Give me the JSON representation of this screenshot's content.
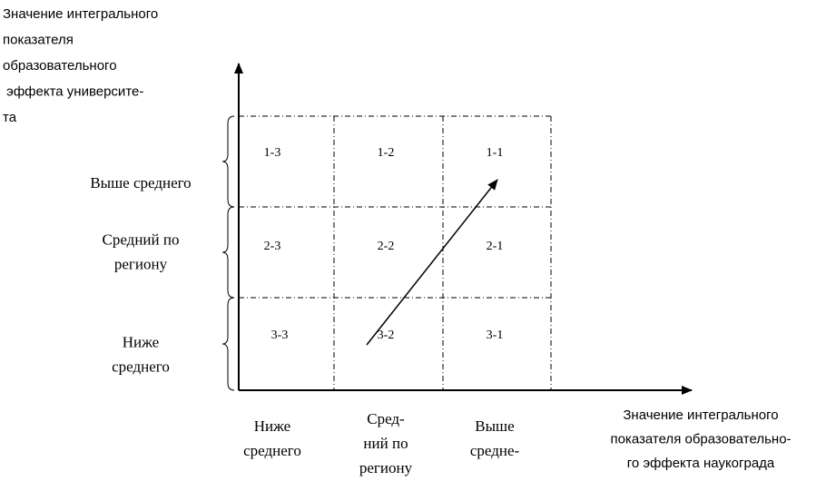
{
  "y_axis_label": [
    "Значение интегрального",
    "показателя",
    "образовательного",
    " эффекта университе-",
    "та"
  ],
  "x_axis_label": [
    "Значение интегрального",
    "показателя образовательно-",
    "го эффекта наукограда"
  ],
  "row_labels": [
    [
      "Выше среднего"
    ],
    [
      "Средний по",
      "региону"
    ],
    [
      "Ниже",
      "среднего"
    ]
  ],
  "column_labels": [
    [
      "Ниже",
      "среднего"
    ],
    [
      "Сред-",
      "ний по",
      "региону"
    ],
    [
      "Выше",
      "средне-"
    ]
  ],
  "cells": [
    [
      "1-3",
      "1-2",
      "1-1"
    ],
    [
      "2-3",
      "2-2",
      "2-1"
    ],
    [
      "3-3",
      "3-2",
      "3-1"
    ]
  ]
}
